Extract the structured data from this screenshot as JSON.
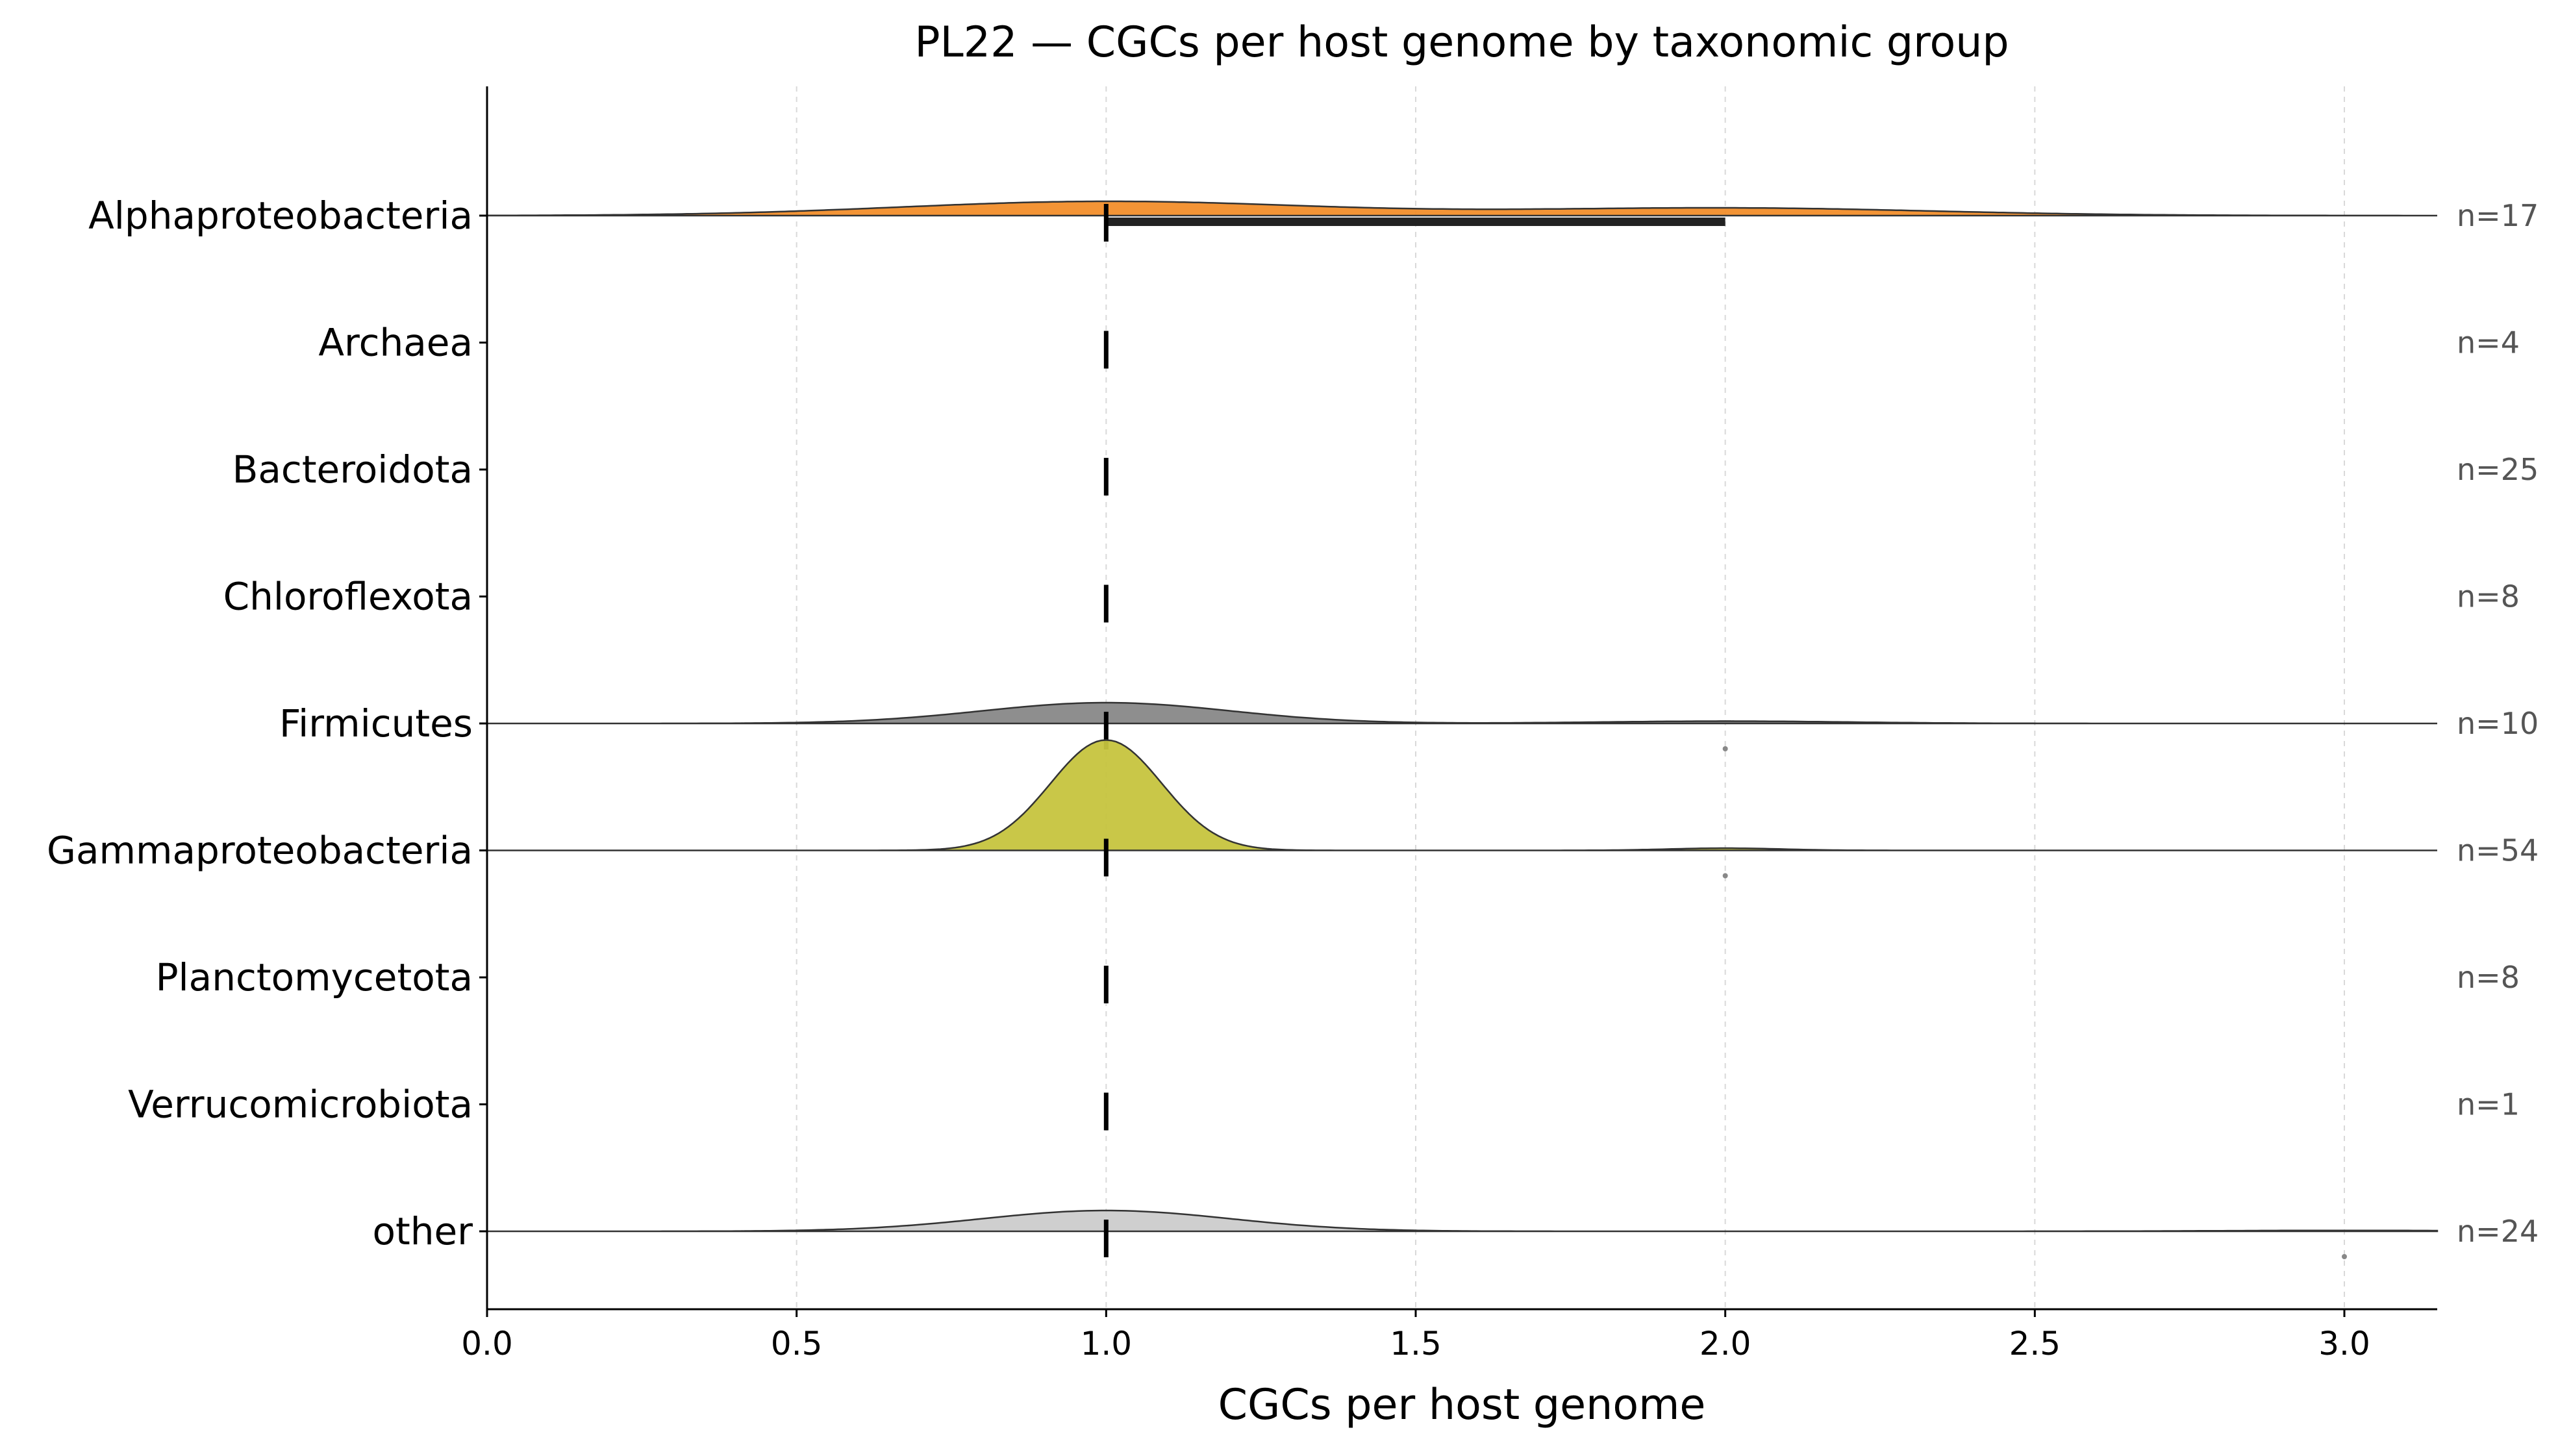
{
  "chart_data": {
    "type": "ridgeline",
    "title": "PL22 — CGCs per host genome by taxonomic group",
    "xlabel": "CGCs per host genome",
    "ylabel": "",
    "xlim": [
      0.0,
      3.15
    ],
    "x_ticks": [
      "0.0",
      "0.5",
      "1.0",
      "1.5",
      "2.0",
      "2.5",
      "3.0"
    ],
    "grid": "vertical dashed",
    "groups": [
      {
        "name": "Alphaproteobacteria",
        "n_label": "n=17",
        "n": 17,
        "color": "#f28e2b",
        "median": 1.0,
        "iqr": [
          1.0,
          2.0
        ],
        "outliers": [],
        "kde": {
          "bw": 0.33,
          "components": [
            {
              "mu": 1.0,
              "w": 0.65
            },
            {
              "mu": 2.0,
              "w": 0.35
            }
          ],
          "rel_height": 0.11
        }
      },
      {
        "name": "Archaea",
        "n_label": "n=4",
        "n": 4,
        "color": "#9c755f",
        "median": 1.0,
        "iqr": [
          1.0,
          1.0
        ],
        "outliers": [],
        "kde": null
      },
      {
        "name": "Bacteroidota",
        "n_label": "n=25",
        "n": 25,
        "color": "#59a14f",
        "median": 1.0,
        "iqr": [
          1.0,
          1.0
        ],
        "outliers": [],
        "kde": null
      },
      {
        "name": "Chloroflexota",
        "n_label": "n=8",
        "n": 8,
        "color": "#76b7b2",
        "median": 1.0,
        "iqr": [
          1.0,
          1.0
        ],
        "outliers": [],
        "kde": null
      },
      {
        "name": "Firmicutes",
        "n_label": "n=10",
        "n": 10,
        "color": "#888888",
        "median": 1.0,
        "iqr": [
          1.0,
          1.0
        ],
        "outliers": [
          2.0
        ],
        "kde": {
          "bw": 0.2,
          "components": [
            {
              "mu": 1.0,
              "w": 0.9
            },
            {
              "mu": 2.0,
              "w": 0.1
            }
          ],
          "rel_height": 0.16
        }
      },
      {
        "name": "Gammaproteobacteria",
        "n_label": "n=54",
        "n": 54,
        "color": "#c6c43e",
        "median": 1.0,
        "iqr": [
          1.0,
          1.0
        ],
        "outliers": [
          2.0
        ],
        "kde": {
          "bw": 0.09,
          "components": [
            {
              "mu": 1.0,
              "w": 0.98
            },
            {
              "mu": 2.0,
              "w": 0.02
            }
          ],
          "rel_height": 0.85
        }
      },
      {
        "name": "Planctomycetota",
        "n_label": "n=8",
        "n": 8,
        "color": "#b07aa1",
        "median": 1.0,
        "iqr": [
          1.0,
          1.0
        ],
        "outliers": [],
        "kde": null
      },
      {
        "name": "Verrucomicrobiota",
        "n_label": "n=1",
        "n": 1,
        "color": "#ff9da7",
        "median": 1.0,
        "iqr": [
          1.0,
          1.0
        ],
        "outliers": [],
        "kde": null
      },
      {
        "name": "other",
        "n_label": "n=24",
        "n": 24,
        "color": "#cccccc",
        "median": 1.0,
        "iqr": [
          1.0,
          1.0
        ],
        "outliers": [
          3.0
        ],
        "kde": {
          "bw": 0.2,
          "components": [
            {
              "mu": 1.0,
              "w": 0.96
            },
            {
              "mu": 3.0,
              "w": 0.04
            }
          ],
          "rel_height": 0.16
        }
      }
    ]
  }
}
